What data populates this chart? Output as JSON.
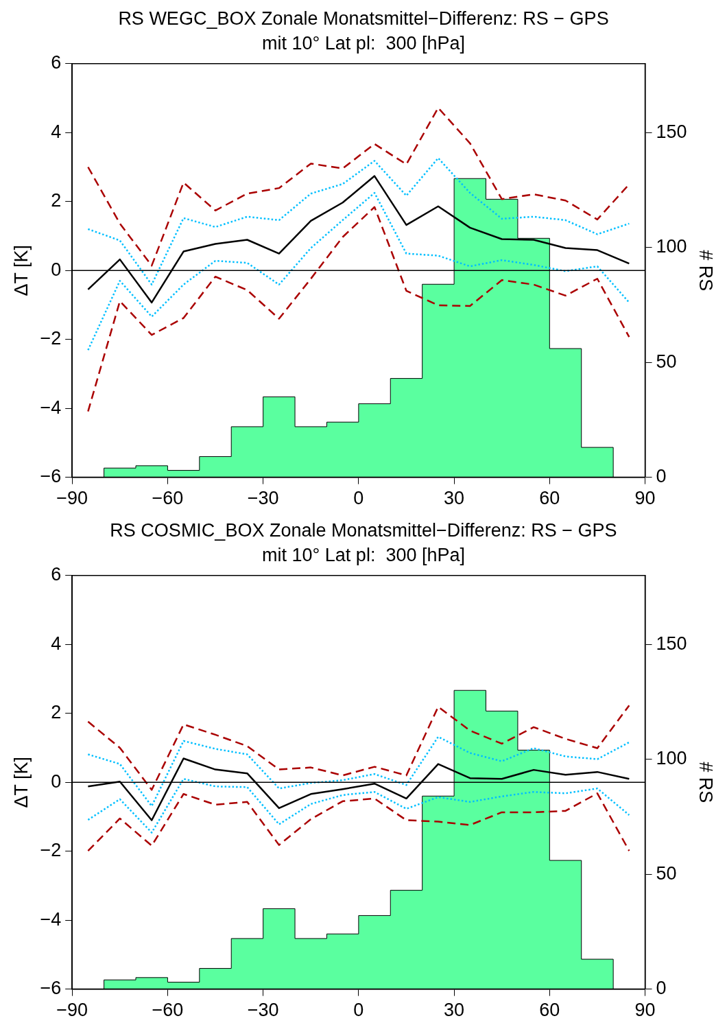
{
  "chart_data": [
    {
      "type": "line",
      "title": "RS WEGC_BOX Zonale Monatsmittel−Differenz: RS − GPS",
      "subtitle": "mit 10° Lat pl:  300 [hPa]",
      "ylabel": "ΔT [K]",
      "y2label": "# RS",
      "x": [
        -85,
        -75,
        -65,
        -55,
        -45,
        -35,
        -25,
        -15,
        -5,
        5,
        15,
        25,
        35,
        45,
        55,
        65,
        75,
        85
      ],
      "xlim": [
        -90,
        90
      ],
      "xticks": [
        -90,
        -60,
        -30,
        0,
        30,
        60,
        90
      ],
      "ylim": [
        -6,
        6
      ],
      "yticks": [
        -6,
        -4,
        -2,
        0,
        2,
        4,
        6
      ],
      "y2lim": [
        0,
        180
      ],
      "y2ticks": [
        0,
        50,
        100,
        150
      ],
      "marker": "none",
      "ref_lines": [
        {
          "axis": "y",
          "value": 0,
          "color": "#000000"
        }
      ],
      "series": [
        {
          "type": "histogram",
          "axis": "y2",
          "color": "#5aff9f",
          "bins": [
            -85,
            -80,
            -70,
            -60,
            -50,
            -40,
            -30,
            -20,
            -10,
            0,
            10,
            20,
            30,
            40,
            50,
            60,
            70,
            80,
            85
          ],
          "values": [
            0,
            4,
            5,
            3,
            9,
            22,
            35,
            22,
            24,
            32,
            43,
            84,
            130,
            121,
            104,
            56,
            13,
            0
          ]
        },
        {
          "color": "#aa0000",
          "line_style": "dashed",
          "values": [
            3.0,
            1.36,
            0.14,
            2.55,
            1.74,
            2.23,
            2.39,
            3.1,
            2.96,
            3.67,
            3.08,
            4.72,
            3.69,
            2.07,
            2.21,
            2.03,
            1.48,
            2.5
          ]
        },
        {
          "color": "#aa0000",
          "line_style": "dashed",
          "values": [
            -4.09,
            -0.89,
            -1.87,
            -1.38,
            -0.18,
            -0.57,
            -1.4,
            -0.24,
            0.97,
            1.84,
            -0.59,
            -1.01,
            -1.03,
            -0.28,
            -0.41,
            -0.73,
            -0.24,
            -1.93
          ]
        },
        {
          "color": "#00bfff",
          "line_style": "dotted",
          "values": [
            1.2,
            0.87,
            -0.41,
            1.52,
            1.26,
            1.56,
            1.46,
            2.23,
            2.51,
            3.18,
            2.17,
            3.26,
            2.25,
            1.5,
            1.56,
            1.46,
            1.05,
            1.36
          ]
        },
        {
          "color": "#00bfff",
          "line_style": "dotted",
          "values": [
            -2.31,
            -0.3,
            -1.34,
            -0.41,
            0.28,
            0.22,
            -0.41,
            0.65,
            1.46,
            2.25,
            0.49,
            0.43,
            0.12,
            0.3,
            0.16,
            -0.02,
            0.12,
            -0.93
          ]
        },
        {
          "color": "#000000",
          "line_style": "solid",
          "values": [
            -0.55,
            0.32,
            -0.93,
            0.55,
            0.77,
            0.89,
            0.49,
            1.44,
            1.97,
            2.74,
            1.32,
            1.86,
            1.24,
            0.91,
            0.89,
            0.65,
            0.59,
            0.2
          ]
        }
      ]
    },
    {
      "type": "line",
      "title": "RS COSMIC_BOX Zonale Monatsmittel−Differenz: RS − GPS",
      "subtitle": "mit 10° Lat pl:  300 [hPa]",
      "ylabel": "ΔT [K]",
      "y2label": "# RS",
      "x": [
        -85,
        -75,
        -65,
        -55,
        -45,
        -35,
        -25,
        -15,
        -5,
        5,
        15,
        25,
        35,
        45,
        55,
        65,
        75,
        85
      ],
      "xlim": [
        -90,
        90
      ],
      "xticks": [
        -90,
        -60,
        -30,
        0,
        30,
        60,
        90
      ],
      "ylim": [
        -6,
        6
      ],
      "yticks": [
        -6,
        -4,
        -2,
        0,
        2,
        4,
        6
      ],
      "y2lim": [
        0,
        180
      ],
      "y2ticks": [
        0,
        50,
        100,
        150
      ],
      "marker": "none",
      "ref_lines": [
        {
          "axis": "y",
          "value": 0,
          "color": "#000000"
        }
      ],
      "series": [
        {
          "type": "histogram",
          "axis": "y2",
          "color": "#5aff9f",
          "bins": [
            -85,
            -80,
            -70,
            -60,
            -50,
            -40,
            -30,
            -20,
            -10,
            0,
            10,
            20,
            30,
            40,
            50,
            60,
            70,
            80,
            85
          ],
          "values": [
            0,
            4,
            5,
            3,
            9,
            22,
            35,
            22,
            24,
            32,
            43,
            84,
            130,
            121,
            104,
            56,
            13,
            0
          ]
        },
        {
          "color": "#aa0000",
          "line_style": "dashed",
          "values": [
            1.76,
            1.0,
            -0.22,
            1.68,
            1.38,
            1.05,
            0.37,
            0.43,
            0.2,
            0.45,
            0.2,
            2.19,
            1.5,
            1.12,
            1.6,
            1.26,
            0.99,
            2.23
          ]
        },
        {
          "color": "#aa0000",
          "line_style": "dashed",
          "values": [
            -1.99,
            -1.05,
            -1.84,
            -0.34,
            -0.65,
            -0.57,
            -1.82,
            -1.07,
            -0.55,
            -0.47,
            -1.1,
            -1.14,
            -1.24,
            -0.87,
            -0.87,
            -0.83,
            -0.32,
            -1.99
          ]
        },
        {
          "color": "#00bfff",
          "line_style": "dotted",
          "values": [
            0.81,
            0.53,
            -0.69,
            1.2,
            0.97,
            0.81,
            -0.18,
            -0.02,
            0.06,
            0.24,
            -0.08,
            1.32,
            0.85,
            0.61,
            0.99,
            0.75,
            0.67,
            1.16
          ]
        },
        {
          "color": "#00bfff",
          "line_style": "dotted",
          "values": [
            -1.09,
            -0.49,
            -1.46,
            0.1,
            -0.12,
            -0.14,
            -1.22,
            -0.63,
            -0.37,
            -0.28,
            -0.77,
            -0.43,
            -0.57,
            -0.41,
            -0.28,
            -0.32,
            -0.18,
            -0.95
          ]
        },
        {
          "color": "#000000",
          "line_style": "solid",
          "values": [
            -0.12,
            0.02,
            -1.1,
            0.69,
            0.37,
            0.26,
            -0.75,
            -0.34,
            -0.2,
            -0.04,
            -0.47,
            0.53,
            0.12,
            0.1,
            0.36,
            0.22,
            0.3,
            0.1
          ]
        }
      ]
    }
  ]
}
